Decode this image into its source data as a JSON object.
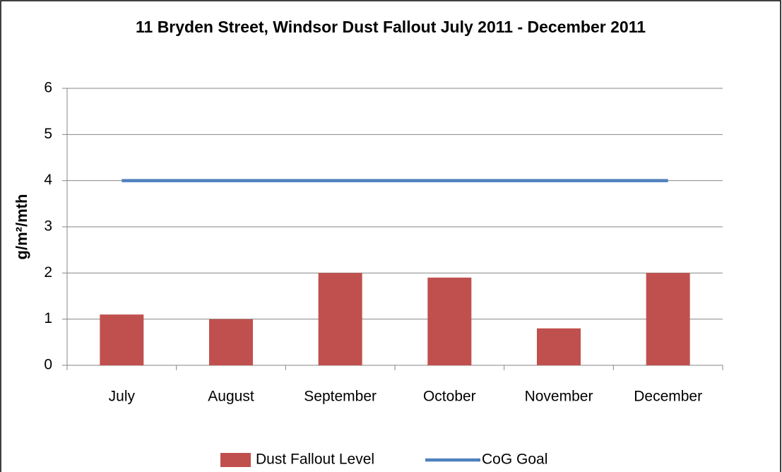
{
  "chart_data": {
    "type": "bar",
    "title": "11 Bryden Street, Windsor Dust Fallout July 2011 - December 2011",
    "y_label": "g/m²/mth",
    "categories": [
      "July",
      "August",
      "September",
      "October",
      "November",
      "December"
    ],
    "series": [
      {
        "name": "Dust Fallout Level",
        "type": "bar",
        "color": "#c0504d",
        "values": [
          1.1,
          1.0,
          2.0,
          1.9,
          0.8,
          2.0
        ]
      },
      {
        "name": "CoG Goal",
        "type": "line",
        "color": "#4f81bd",
        "values": [
          4,
          4,
          4,
          4,
          4,
          4
        ]
      }
    ],
    "ylim": [
      0,
      6
    ],
    "yticks": [
      0,
      1,
      2,
      3,
      4,
      5,
      6
    ],
    "grid": true,
    "legend": "bottom"
  }
}
